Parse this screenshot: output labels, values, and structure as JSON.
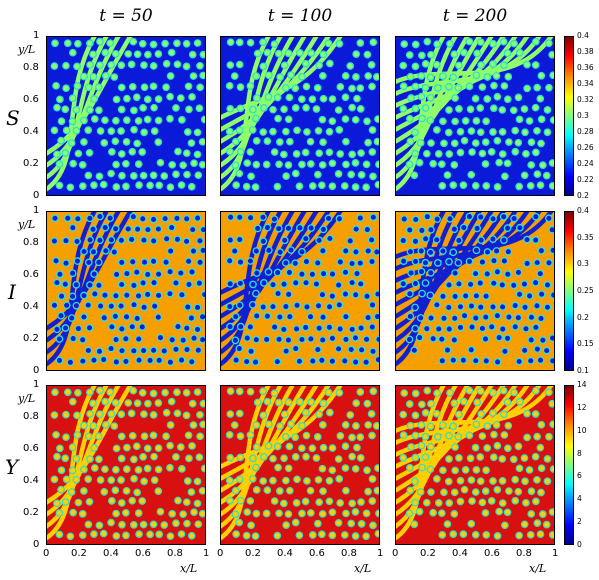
{
  "columns": [
    {
      "title": "t = 50"
    },
    {
      "title": "t = 100"
    },
    {
      "title": "t = 200"
    }
  ],
  "rows": [
    {
      "label": "S",
      "colorbar_ticks": [
        "0.4",
        "0.38",
        "0.36",
        "0.34",
        "0.32",
        "0.3",
        "0.28",
        "0.26",
        "0.24",
        "0.22",
        "0.2"
      ],
      "colorbar_range": [
        0.2,
        0.4
      ],
      "bg": "#0a1ad8",
      "spot": "#8fff6a",
      "spot_core": "#28e0d0"
    },
    {
      "label": "I",
      "colorbar_ticks": [
        "0.4",
        "0.35",
        "0.3",
        "0.25",
        "0.2",
        "0.15",
        "0.1"
      ],
      "colorbar_range": [
        0.1,
        0.4
      ],
      "bg": "#f5a000",
      "spot": "#1020d0",
      "spot_core": "#30e0e0"
    },
    {
      "label": "Y",
      "colorbar_ticks": [
        "14",
        "12",
        "10",
        "8",
        "6",
        "4",
        "2",
        "0"
      ],
      "colorbar_range": [
        0,
        14
      ],
      "bg": "#d81010",
      "spot": "#ffd000",
      "spot_core": "#30e0c0"
    }
  ],
  "axes": {
    "ylabel": "y/L",
    "xlabel": "x/L",
    "yticks": [
      "0",
      "0.2",
      "0.4",
      "0.6",
      "0.8",
      "1"
    ],
    "xticks": [
      "0",
      "0.2",
      "0.4",
      "0.6",
      "0.8",
      "1"
    ]
  }
}
